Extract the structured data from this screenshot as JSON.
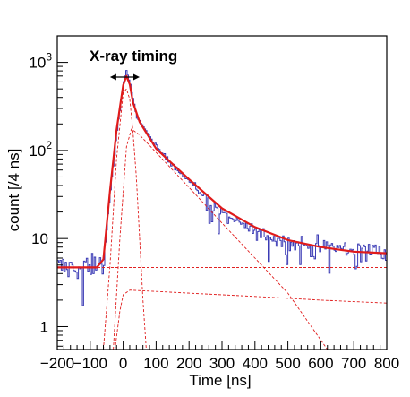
{
  "chart_data": {
    "type": "line",
    "title": "",
    "annotation": "X-ray timing",
    "xlabel": "Time [ns]",
    "ylabel": "count [/4 ns]",
    "xlim": [
      -200,
      800
    ],
    "ylim": [
      0.55,
      2000
    ],
    "yscale": "log",
    "grid": false,
    "legend": "none",
    "x_ticks": [
      -200,
      -100,
      0,
      100,
      200,
      300,
      400,
      500,
      600,
      700,
      800
    ],
    "x_tick_labels": [
      "−200",
      "−100",
      "0",
      "100",
      "200",
      "300",
      "400",
      "500",
      "600",
      "700",
      "800"
    ],
    "y_ticks": [
      1,
      10,
      100,
      1000
    ],
    "y_tick_labels": [
      "1",
      "10",
      "10^2",
      "10^3"
    ],
    "arrow_range_ns": [
      -40,
      50
    ],
    "colors": {
      "data": "#3b3bb5",
      "fit": "#e01b1b",
      "components": "#e01b1b",
      "frame": "#000000"
    },
    "series": [
      {
        "style": "histogram",
        "bin_width_ns": 4,
        "key_points": [
          {
            "x": -200,
            "y": 4.7
          },
          {
            "x": -100,
            "y": 4.7
          },
          {
            "x": -60,
            "y": 5.5
          },
          {
            "x": -40,
            "y": 30
          },
          {
            "x": -20,
            "y": 150
          },
          {
            "x": 0,
            "y": 550
          },
          {
            "x": 10,
            "y": 800
          },
          {
            "x": 20,
            "y": 600
          },
          {
            "x": 40,
            "y": 250
          },
          {
            "x": 100,
            "y": 110
          },
          {
            "x": 200,
            "y": 45
          },
          {
            "x": 300,
            "y": 19
          },
          {
            "x": 400,
            "y": 12
          },
          {
            "x": 500,
            "y": 9
          },
          {
            "x": 600,
            "y": 8
          },
          {
            "x": 700,
            "y": 7.5
          },
          {
            "x": 800,
            "y": 7
          }
        ]
      },
      {
        "style": "fit",
        "points": [
          {
            "x": -200,
            "y": 4.7
          },
          {
            "x": -80,
            "y": 4.7
          },
          {
            "x": -60,
            "y": 5.8
          },
          {
            "x": -40,
            "y": 35
          },
          {
            "x": -20,
            "y": 170
          },
          {
            "x": 0,
            "y": 550
          },
          {
            "x": 10,
            "y": 700
          },
          {
            "x": 20,
            "y": 560
          },
          {
            "x": 30,
            "y": 350
          },
          {
            "x": 50,
            "y": 210
          },
          {
            "x": 100,
            "y": 105
          },
          {
            "x": 150,
            "y": 70
          },
          {
            "x": 200,
            "y": 47
          },
          {
            "x": 300,
            "y": 22
          },
          {
            "x": 400,
            "y": 13.5
          },
          {
            "x": 500,
            "y": 9.6
          },
          {
            "x": 600,
            "y": 8
          },
          {
            "x": 700,
            "y": 7.1
          },
          {
            "x": 800,
            "y": 6.8
          }
        ]
      },
      {
        "style": "component",
        "points": [
          {
            "x": -60,
            "y": 0.55
          },
          {
            "x": -40,
            "y": 5
          },
          {
            "x": -20,
            "y": 80
          },
          {
            "x": 0,
            "y": 450
          },
          {
            "x": 10,
            "y": 500
          },
          {
            "x": 20,
            "y": 380
          },
          {
            "x": 30,
            "y": 160
          },
          {
            "x": 40,
            "y": 50
          },
          {
            "x": 50,
            "y": 10
          },
          {
            "x": 60,
            "y": 2
          },
          {
            "x": 70,
            "y": 0.55
          }
        ]
      },
      {
        "style": "component",
        "points": [
          {
            "x": -30,
            "y": 0.55
          },
          {
            "x": -10,
            "y": 10
          },
          {
            "x": 10,
            "y": 110
          },
          {
            "x": 25,
            "y": 175
          },
          {
            "x": 50,
            "y": 150
          },
          {
            "x": 100,
            "y": 95
          },
          {
            "x": 200,
            "y": 38
          },
          {
            "x": 300,
            "y": 15
          },
          {
            "x": 400,
            "y": 6
          },
          {
            "x": 500,
            "y": 2.4
          },
          {
            "x": 580,
            "y": 0.9
          },
          {
            "x": 620,
            "y": 0.55
          }
        ]
      },
      {
        "style": "component",
        "points": [
          {
            "x": -200,
            "y": 4.7
          },
          {
            "x": 800,
            "y": 4.7
          }
        ]
      },
      {
        "style": "component",
        "points": [
          {
            "x": -200,
            "y": 4.7
          },
          {
            "x": 800,
            "y": 4.7
          }
        ]
      },
      {
        "style": "component",
        "points": [
          {
            "x": -25,
            "y": 0.55
          },
          {
            "x": -10,
            "y": 1.5
          },
          {
            "x": 0,
            "y": 2.3
          },
          {
            "x": 20,
            "y": 2.6
          },
          {
            "x": 200,
            "y": 2.4
          },
          {
            "x": 400,
            "y": 2.2
          },
          {
            "x": 600,
            "y": 2.0
          },
          {
            "x": 800,
            "y": 1.85
          }
        ]
      }
    ]
  }
}
